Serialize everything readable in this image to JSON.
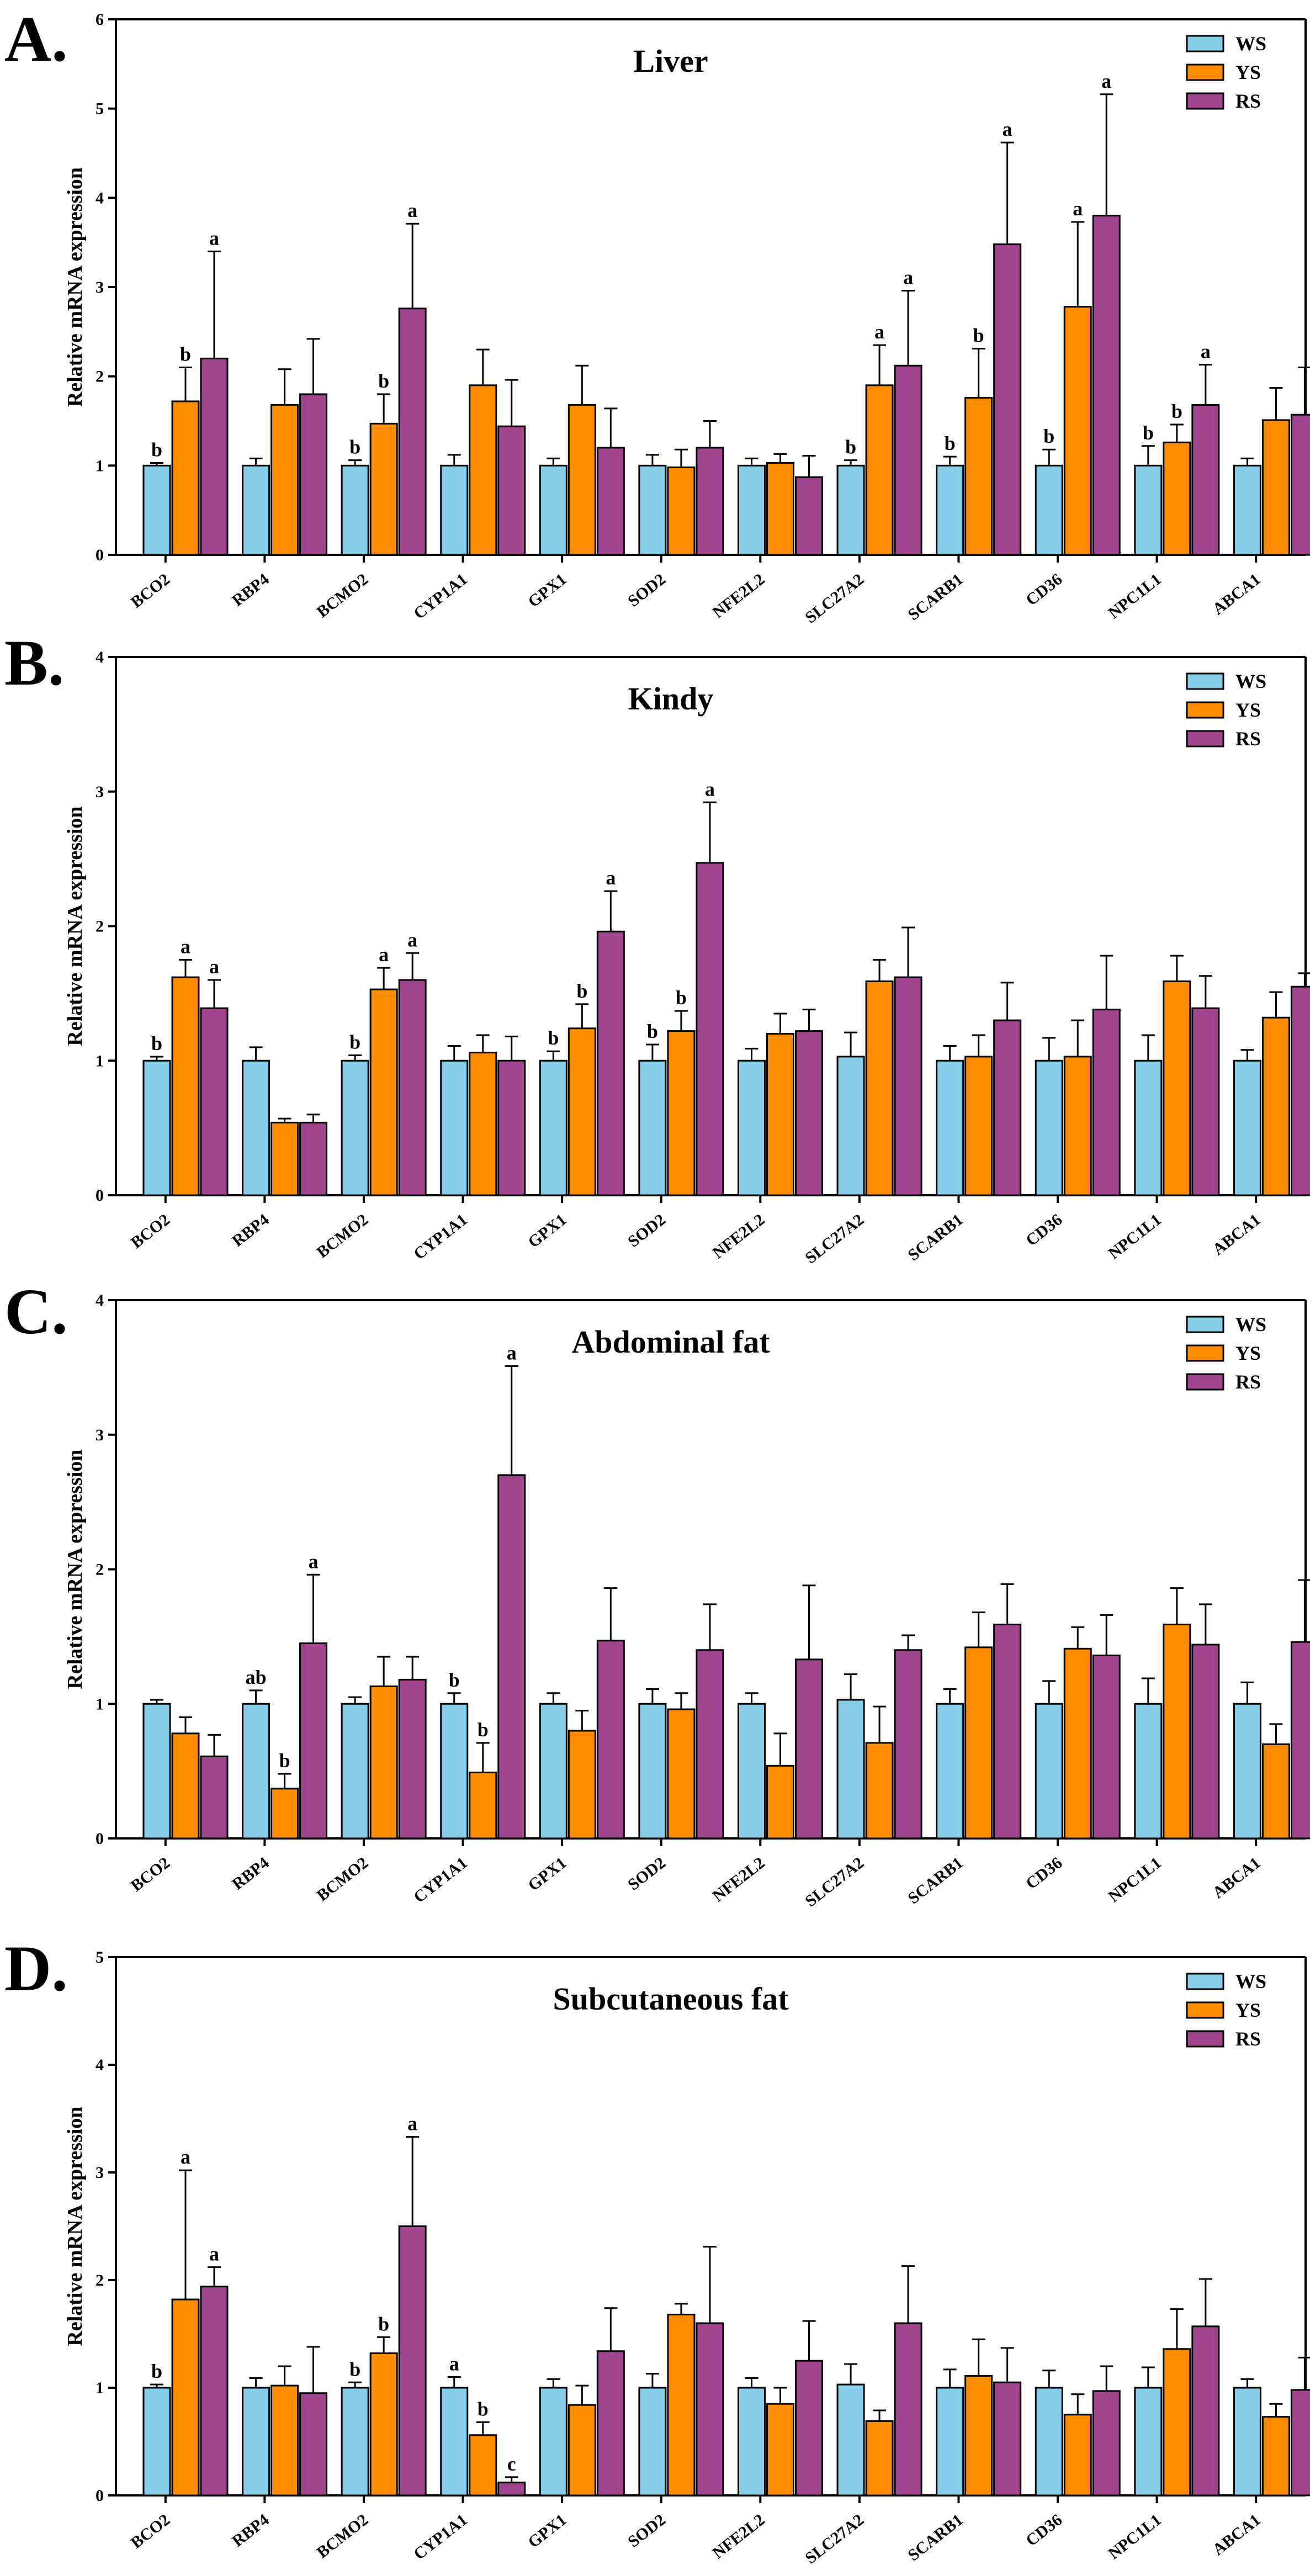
{
  "colors": {
    "WS": "#87CEEB",
    "YS": "#FF8C00",
    "RS": "#A0448F",
    "axis": "#000000"
  },
  "chart_data": [
    {
      "type": "bar",
      "panel_label": "A.",
      "title": "Liver",
      "xlabel": "",
      "ylabel": "Relative mRNA expression",
      "ylim": [
        0,
        6
      ],
      "yticks": [
        "0",
        "1",
        "2",
        "3",
        "4",
        "5",
        "6"
      ],
      "legend": [
        "WS",
        "YS",
        "RS"
      ],
      "categories": [
        "BCO2",
        "RBP4",
        "BCMO2",
        "CYP1A1",
        "GPX1",
        "SOD2",
        "NFE2L2",
        "SLC27A2",
        "SCARB1",
        "CD36",
        "NPC1L1",
        "ABCA1"
      ],
      "series": [
        {
          "name": "WS",
          "values": [
            1.0,
            1.0,
            1.0,
            1.0,
            1.0,
            1.0,
            1.0,
            1.0,
            1.0,
            1.0,
            1.0,
            1.0
          ],
          "errors": [
            0.03,
            0.08,
            0.06,
            0.12,
            0.08,
            0.12,
            0.08,
            0.06,
            0.1,
            0.18,
            0.22,
            0.08
          ],
          "sig": [
            "b",
            "",
            "b",
            "",
            "",
            "",
            "",
            "b",
            "b",
            "b",
            "b",
            ""
          ]
        },
        {
          "name": "YS",
          "values": [
            1.72,
            1.68,
            1.47,
            1.9,
            1.68,
            0.98,
            1.03,
            1.9,
            1.76,
            2.78,
            1.26,
            1.51
          ],
          "errors": [
            0.38,
            0.4,
            0.33,
            0.4,
            0.44,
            0.2,
            0.1,
            0.45,
            0.55,
            0.95,
            0.2,
            0.36
          ],
          "sig": [
            "b",
            "",
            "b",
            "",
            "",
            "",
            "",
            "a",
            "b",
            "a",
            "b",
            ""
          ]
        },
        {
          "name": "RS",
          "values": [
            2.2,
            1.8,
            2.76,
            1.44,
            1.2,
            1.2,
            0.87,
            2.12,
            3.48,
            3.8,
            1.68,
            1.57
          ],
          "errors": [
            1.2,
            0.62,
            0.95,
            0.52,
            0.44,
            0.3,
            0.24,
            0.84,
            1.14,
            1.36,
            0.45,
            0.53
          ],
          "sig": [
            "a",
            "",
            "a",
            "",
            "",
            "",
            "",
            "a",
            "a",
            "a",
            "a",
            ""
          ]
        }
      ]
    },
    {
      "type": "bar",
      "panel_label": "B.",
      "title": "Kindy",
      "xlabel": "",
      "ylabel": "Relative mRNA expression",
      "ylim": [
        0,
        4
      ],
      "yticks": [
        "0",
        "1",
        "2",
        "3",
        "4"
      ],
      "legend": [
        "WS",
        "YS",
        "RS"
      ],
      "categories": [
        "BCO2",
        "RBP4",
        "BCMO2",
        "CYP1A1",
        "GPX1",
        "SOD2",
        "NFE2L2",
        "SLC27A2",
        "SCARB1",
        "CD36",
        "NPC1L1",
        "ABCA1"
      ],
      "series": [
        {
          "name": "WS",
          "values": [
            1.0,
            1.0,
            1.0,
            1.0,
            1.0,
            1.0,
            1.0,
            1.03,
            1.0,
            1.0,
            1.0,
            1.0
          ],
          "errors": [
            0.03,
            0.1,
            0.04,
            0.11,
            0.07,
            0.12,
            0.09,
            0.18,
            0.11,
            0.17,
            0.19,
            0.08
          ],
          "sig": [
            "b",
            "",
            "b",
            "",
            "b",
            "b",
            "",
            "",
            "",
            "",
            "",
            ""
          ]
        },
        {
          "name": "YS",
          "values": [
            1.62,
            0.54,
            1.53,
            1.06,
            1.24,
            1.22,
            1.2,
            1.59,
            1.03,
            1.03,
            1.59,
            1.32
          ],
          "errors": [
            0.13,
            0.03,
            0.16,
            0.13,
            0.18,
            0.15,
            0.15,
            0.16,
            0.16,
            0.27,
            0.19,
            0.19
          ],
          "sig": [
            "a",
            "",
            "a",
            "",
            "b",
            "b",
            "",
            "",
            "",
            "",
            "",
            ""
          ]
        },
        {
          "name": "RS",
          "values": [
            1.39,
            0.54,
            1.6,
            1.0,
            1.96,
            2.47,
            1.22,
            1.62,
            1.3,
            1.38,
            1.39,
            1.55
          ],
          "errors": [
            0.21,
            0.06,
            0.2,
            0.18,
            0.3,
            0.45,
            0.16,
            0.37,
            0.28,
            0.4,
            0.24,
            0.1
          ],
          "sig": [
            "a",
            "",
            "a",
            "",
            "a",
            "a",
            "",
            "",
            "",
            "",
            "",
            ""
          ]
        }
      ]
    },
    {
      "type": "bar",
      "panel_label": "C.",
      "title": "Abdominal fat",
      "xlabel": "",
      "ylabel": "Relative mRNA expression",
      "ylim": [
        0,
        4
      ],
      "yticks": [
        "0",
        "1",
        "2",
        "3",
        "4"
      ],
      "legend": [
        "WS",
        "YS",
        "RS"
      ],
      "categories": [
        "BCO2",
        "RBP4",
        "BCMO2",
        "CYP1A1",
        "GPX1",
        "SOD2",
        "NFE2L2",
        "SLC27A2",
        "SCARB1",
        "CD36",
        "NPC1L1",
        "ABCA1"
      ],
      "series": [
        {
          "name": "WS",
          "values": [
            1.0,
            1.0,
            1.0,
            1.0,
            1.0,
            1.0,
            1.0,
            1.03,
            1.0,
            1.0,
            1.0,
            1.0
          ],
          "errors": [
            0.03,
            0.1,
            0.05,
            0.08,
            0.08,
            0.11,
            0.08,
            0.19,
            0.11,
            0.17,
            0.19,
            0.16
          ],
          "sig": [
            "",
            "ab",
            "",
            "b",
            "",
            "",
            "",
            "",
            "",
            "",
            "",
            ""
          ]
        },
        {
          "name": "YS",
          "values": [
            0.78,
            0.37,
            1.13,
            0.49,
            0.8,
            0.96,
            0.54,
            0.71,
            1.42,
            1.41,
            1.59,
            0.7
          ],
          "errors": [
            0.12,
            0.11,
            0.22,
            0.22,
            0.15,
            0.12,
            0.24,
            0.27,
            0.26,
            0.16,
            0.27,
            0.15
          ],
          "sig": [
            "",
            "b",
            "",
            "b",
            "",
            "",
            "",
            "",
            "",
            "",
            "",
            ""
          ]
        },
        {
          "name": "RS",
          "values": [
            0.61,
            1.45,
            1.18,
            2.7,
            1.47,
            1.4,
            1.33,
            1.4,
            1.59,
            1.36,
            1.44,
            1.46
          ],
          "errors": [
            0.16,
            0.51,
            0.17,
            0.81,
            0.39,
            0.34,
            0.55,
            0.11,
            0.3,
            0.3,
            0.3,
            0.46
          ],
          "sig": [
            "",
            "a",
            "",
            "a",
            "",
            "",
            "",
            "",
            "",
            "",
            "",
            ""
          ]
        }
      ]
    },
    {
      "type": "bar",
      "panel_label": "D.",
      "title": "Subcutaneous fat",
      "xlabel": "",
      "ylabel": "Relative mRNA expression",
      "ylim": [
        0,
        5
      ],
      "yticks": [
        "0",
        "1",
        "2",
        "3",
        "4",
        "5"
      ],
      "legend": [
        "WS",
        "YS",
        "RS"
      ],
      "categories": [
        "BCO2",
        "RBP4",
        "BCMO2",
        "CYP1A1",
        "GPX1",
        "SOD2",
        "NFE2L2",
        "SLC27A2",
        "SCARB1",
        "CD36",
        "NPC1L1",
        "ABCA1"
      ],
      "series": [
        {
          "name": "WS",
          "values": [
            1.0,
            1.0,
            1.0,
            1.0,
            1.0,
            1.0,
            1.0,
            1.03,
            1.0,
            1.0,
            1.0,
            1.0
          ],
          "errors": [
            0.03,
            0.09,
            0.05,
            0.1,
            0.08,
            0.13,
            0.09,
            0.19,
            0.17,
            0.16,
            0.19,
            0.08
          ],
          "sig": [
            "b",
            "",
            "b",
            "a",
            "",
            "",
            "",
            "",
            "",
            "",
            "",
            ""
          ]
        },
        {
          "name": "YS",
          "values": [
            1.82,
            1.02,
            1.32,
            0.56,
            0.84,
            1.68,
            0.85,
            0.69,
            1.11,
            0.75,
            1.36,
            0.73
          ],
          "errors": [
            1.2,
            0.18,
            0.15,
            0.12,
            0.18,
            0.1,
            0.15,
            0.1,
            0.34,
            0.19,
            0.37,
            0.12
          ],
          "sig": [
            "a",
            "",
            "b",
            "b",
            "",
            "",
            "",
            "",
            "",
            "",
            "",
            ""
          ]
        },
        {
          "name": "RS",
          "values": [
            1.94,
            0.95,
            2.5,
            0.12,
            1.34,
            1.6,
            1.25,
            1.6,
            1.05,
            0.97,
            1.57,
            0.98
          ],
          "errors": [
            0.18,
            0.43,
            0.83,
            0.05,
            0.4,
            0.71,
            0.37,
            0.53,
            0.32,
            0.23,
            0.44,
            0.3
          ],
          "sig": [
            "a",
            "",
            "a",
            "c",
            "",
            "",
            "",
            "",
            "",
            "",
            "",
            ""
          ]
        }
      ]
    }
  ]
}
